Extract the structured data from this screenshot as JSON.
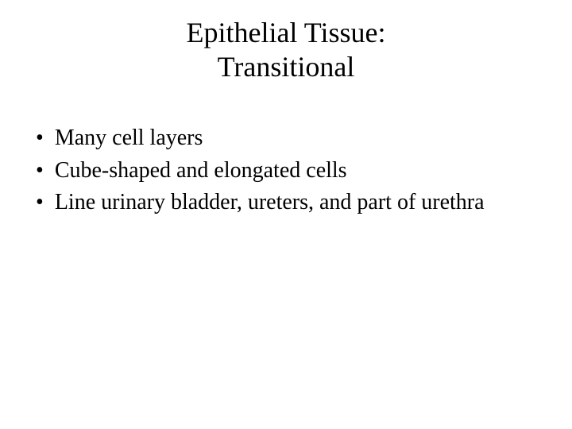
{
  "slide": {
    "title_line1": "Epithelial Tissue:",
    "title_line2": "Transitional",
    "bullets": [
      "Many cell layers",
      "Cube-shaped and elongated cells",
      "Line urinary bladder, ureters, and part of urethra"
    ],
    "colors": {
      "background": "#ffffff",
      "text": "#000000"
    },
    "typography": {
      "font_family": "Times New Roman",
      "title_fontsize": 36,
      "body_fontsize": 28
    }
  }
}
